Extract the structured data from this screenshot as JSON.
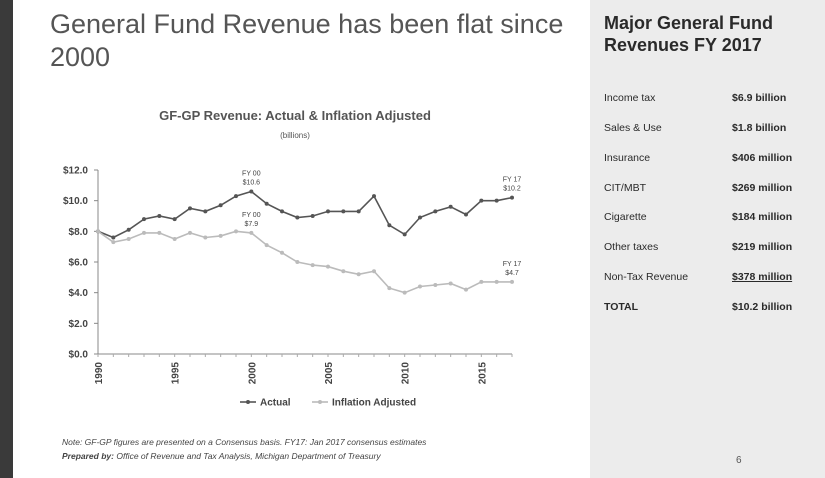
{
  "slide": {
    "title": "General Fund Revenue has been flat since 2000",
    "page_number": "6",
    "note": "Note: GF-GP figures are presented on a Consensus basis. FY17: Jan 2017 consensus estimates",
    "prepared_by_label": "Prepared by:",
    "prepared_by": "Office of Revenue and Tax Analysis, Michigan Department of Treasury"
  },
  "panel": {
    "title": "Major General Fund Revenues FY 2017",
    "rows": [
      {
        "label": "Income tax",
        "value": "$6.9 billion"
      },
      {
        "label": "Sales & Use",
        "value": "$1.8 billion"
      },
      {
        "label": "Insurance",
        "value": "$406 million"
      },
      {
        "label": "CIT/MBT",
        "value": "$269 million"
      },
      {
        "label": "Cigarette",
        "value": "$184 million"
      },
      {
        "label": "Other taxes",
        "value": "$219 million"
      },
      {
        "label": "Non-Tax Revenue",
        "value": "$378 million"
      },
      {
        "label": "TOTAL",
        "value": "$10.2 billion"
      }
    ]
  },
  "chart_data": {
    "type": "line",
    "title": "GF-GP Revenue: Actual & Inflation Adjusted",
    "subtitle": "(billions)",
    "x": [
      1990,
      1991,
      1992,
      1993,
      1994,
      1995,
      1996,
      1997,
      1998,
      1999,
      2000,
      2001,
      2002,
      2003,
      2004,
      2005,
      2006,
      2007,
      2008,
      2009,
      2010,
      2011,
      2012,
      2013,
      2014,
      2015,
      2016,
      2017
    ],
    "series": [
      {
        "name": "Actual",
        "color": "#555555",
        "values": [
          8.0,
          7.6,
          8.1,
          8.8,
          9.0,
          8.8,
          9.5,
          9.3,
          9.7,
          10.3,
          10.6,
          9.8,
          9.3,
          8.9,
          9.0,
          9.3,
          9.3,
          9.3,
          10.3,
          8.4,
          7.8,
          8.9,
          9.3,
          9.6,
          9.1,
          10.0,
          10.0,
          10.2
        ]
      },
      {
        "name": "Inflation Adjusted",
        "color": "#bbbbbb",
        "values": [
          8.0,
          7.3,
          7.5,
          7.9,
          7.9,
          7.5,
          7.9,
          7.6,
          7.7,
          8.0,
          7.9,
          7.1,
          6.6,
          6.0,
          5.8,
          5.7,
          5.4,
          5.2,
          5.4,
          4.3,
          4.0,
          4.4,
          4.5,
          4.6,
          4.2,
          4.7,
          4.7,
          4.7
        ]
      }
    ],
    "ylim": [
      0,
      12
    ],
    "yticks": [
      0,
      2,
      4,
      6,
      8,
      10,
      12
    ],
    "ytick_labels": [
      "$0.0",
      "$2.0",
      "$4.0",
      "$6.0",
      "$8.0",
      "$10.0",
      "$12.0"
    ],
    "xticks": [
      1990,
      1995,
      2000,
      2005,
      2010,
      2015
    ],
    "annotations": [
      {
        "x": 2000,
        "y": 10.6,
        "lines": [
          "FY 00",
          "$10.6"
        ]
      },
      {
        "x": 2000,
        "y": 7.9,
        "lines": [
          "FY 00",
          "$7.9"
        ]
      },
      {
        "x": 2017,
        "y": 10.2,
        "lines": [
          "FY 17",
          "$10.2"
        ]
      },
      {
        "x": 2017,
        "y": 4.7,
        "lines": [
          "FY 17",
          "$4.7"
        ]
      }
    ],
    "grid": false,
    "legend_position": "bottom"
  }
}
